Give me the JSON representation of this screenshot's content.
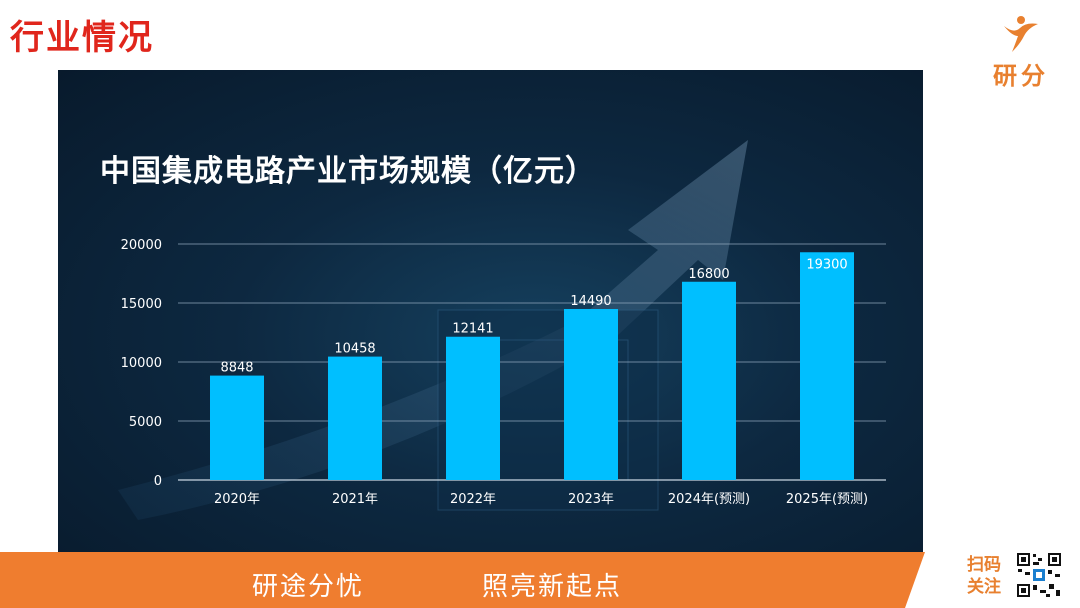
{
  "page": {
    "title": "行业情况",
    "brand": "研分",
    "slogan_left": "研途分忧",
    "slogan_right": "照亮新起点",
    "scan_line1": "扫码",
    "scan_line2": "关注"
  },
  "colors": {
    "title_red": "#e0261c",
    "brand_orange": "#e8802f",
    "bar": "#00bfff",
    "panel_dark": "#0b2136"
  },
  "icons": [
    "leaping-figure-logo-icon",
    "qr-code-icon"
  ],
  "chart_data": {
    "type": "bar",
    "title": "中国集成电路产业市场规模（亿元）",
    "categories": [
      "2020年",
      "2021年",
      "2022年",
      "2023年",
      "2024年(预测)",
      "2025年(预测)"
    ],
    "values": [
      8848,
      10458,
      12141,
      14490,
      16800,
      19300
    ],
    "value_labels": [
      "8848",
      "10458",
      "12141",
      "14490",
      "16800",
      "19300"
    ],
    "ylim": [
      0,
      20000
    ],
    "yticks": [
      0,
      5000,
      10000,
      15000,
      20000
    ],
    "ytick_labels": [
      "0",
      "5000",
      "10000",
      "15000",
      "20000"
    ],
    "grid": true,
    "legend": "none"
  }
}
